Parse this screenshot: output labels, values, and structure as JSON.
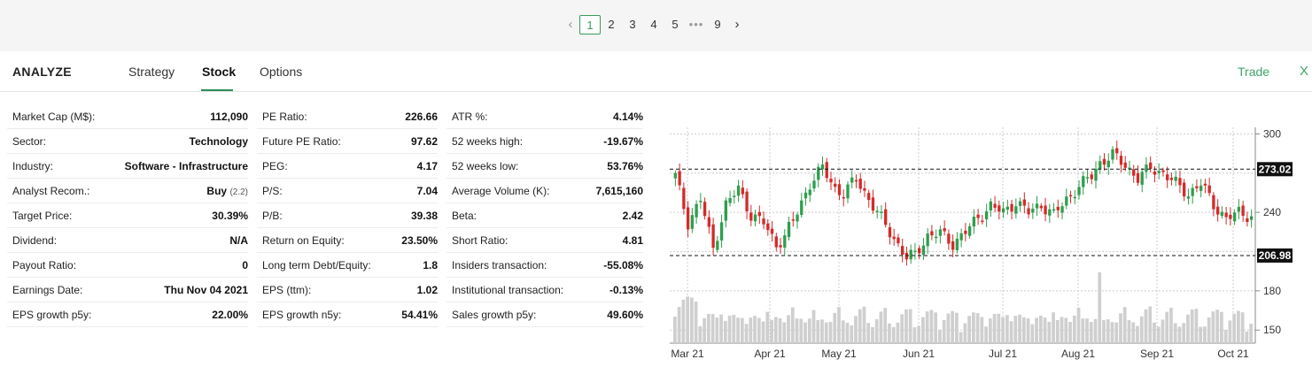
{
  "pagination": {
    "prev_icon": "chevron-left-icon",
    "next_icon": "chevron-right-icon",
    "pages": [
      "1",
      "2",
      "3",
      "4",
      "5"
    ],
    "ellipsis": "•••",
    "last_page": "9",
    "active_page": "1"
  },
  "analyze": {
    "title": "ANALYZE",
    "tabs": [
      "Strategy",
      "Stock",
      "Options"
    ],
    "active_tab": "Stock",
    "trade_label": "Trade",
    "close_label": "X"
  },
  "stats": {
    "col1": [
      {
        "label": "Market Cap (M$):",
        "value": "112,090"
      },
      {
        "label": "Sector:",
        "value": "Technology"
      },
      {
        "label": "Industry:",
        "value": "Software - Infrastructure"
      },
      {
        "label": "Analyst Recom.:",
        "value": "Buy",
        "sub": "(2.2)"
      },
      {
        "label": "Target Price:",
        "value": "30.39%"
      },
      {
        "label": "Dividend:",
        "value": "N/A"
      },
      {
        "label": "Payout Ratio:",
        "value": "0"
      },
      {
        "label": "Earnings Date:",
        "value": "Thu Nov 04 2021"
      },
      {
        "label": "EPS growth p5y:",
        "value": "22.00%"
      }
    ],
    "col2": [
      {
        "label": "PE Ratio:",
        "value": "226.66"
      },
      {
        "label": "Future PE Ratio:",
        "value": "97.62"
      },
      {
        "label": "PEG:",
        "value": "4.17"
      },
      {
        "label": "P/S:",
        "value": "7.04"
      },
      {
        "label": "P/B:",
        "value": "39.38"
      },
      {
        "label": "Return on Equity:",
        "value": "23.50%"
      },
      {
        "label": "Long term Debt/Equity:",
        "value": "1.8"
      },
      {
        "label": "EPS (ttm):",
        "value": "1.02"
      },
      {
        "label": "EPS growth n5y:",
        "value": "54.41%"
      }
    ],
    "col3": [
      {
        "label": "ATR %:",
        "value": "4.14%"
      },
      {
        "label": "52 weeks high:",
        "value": "-19.67%"
      },
      {
        "label": "52 weeks low:",
        "value": "53.76%"
      },
      {
        "label": "Average Volume (K):",
        "value": "7,615,160"
      },
      {
        "label": "Beta:",
        "value": "2.42"
      },
      {
        "label": "Short Ratio:",
        "value": "4.81"
      },
      {
        "label": "Insiders transaction:",
        "value": "-55.08%"
      },
      {
        "label": "Institutional transaction:",
        "value": "-0.13%"
      },
      {
        "label": "Sales growth p5y:",
        "value": "49.60%"
      }
    ]
  },
  "chart_data": {
    "type": "candlestick",
    "x_labels": [
      "Mar 21",
      "Apr 21",
      "May 21",
      "Jun 21",
      "Jul 21",
      "Aug 21",
      "Sep 21",
      "Oct 21"
    ],
    "y_ticks": [
      300,
      240,
      180,
      150
    ],
    "ylim": [
      140,
      305
    ],
    "hlines": [
      {
        "value": 273.02,
        "label": "273.02"
      },
      {
        "value": 206.98,
        "label": "206.98"
      }
    ],
    "grid": true,
    "colors": {
      "up": "#2e9e4e",
      "down": "#d42a2a",
      "volume": "#cfcfcf",
      "grid": "#cccccc"
    },
    "anchors": [
      [
        0,
        268
      ],
      [
        3,
        232
      ],
      [
        6,
        250
      ],
      [
        9,
        212
      ],
      [
        12,
        246
      ],
      [
        15,
        258
      ],
      [
        18,
        238
      ],
      [
        21,
        232
      ],
      [
        24,
        215
      ],
      [
        26,
        222
      ],
      [
        29,
        240
      ],
      [
        32,
        262
      ],
      [
        35,
        274
      ],
      [
        38,
        258
      ],
      [
        40,
        254
      ],
      [
        43,
        266
      ],
      [
        46,
        250
      ],
      [
        49,
        235
      ],
      [
        52,
        220
      ],
      [
        55,
        205
      ],
      [
        57,
        208
      ],
      [
        60,
        222
      ],
      [
        63,
        224
      ],
      [
        66,
        216
      ],
      [
        69,
        225
      ],
      [
        72,
        236
      ],
      [
        75,
        245
      ],
      [
        78,
        240
      ],
      [
        81,
        248
      ],
      [
        84,
        240
      ],
      [
        87,
        246
      ],
      [
        90,
        238
      ],
      [
        93,
        250
      ],
      [
        96,
        260
      ],
      [
        99,
        268
      ],
      [
        101,
        278
      ],
      [
        104,
        284
      ],
      [
        107,
        276
      ],
      [
        110,
        266
      ],
      [
        113,
        274
      ],
      [
        116,
        270
      ],
      [
        119,
        262
      ],
      [
        122,
        254
      ],
      [
        125,
        262
      ],
      [
        128,
        246
      ],
      [
        131,
        235
      ],
      [
        134,
        240
      ],
      [
        137,
        237
      ]
    ],
    "volume_spike_index": 101
  }
}
